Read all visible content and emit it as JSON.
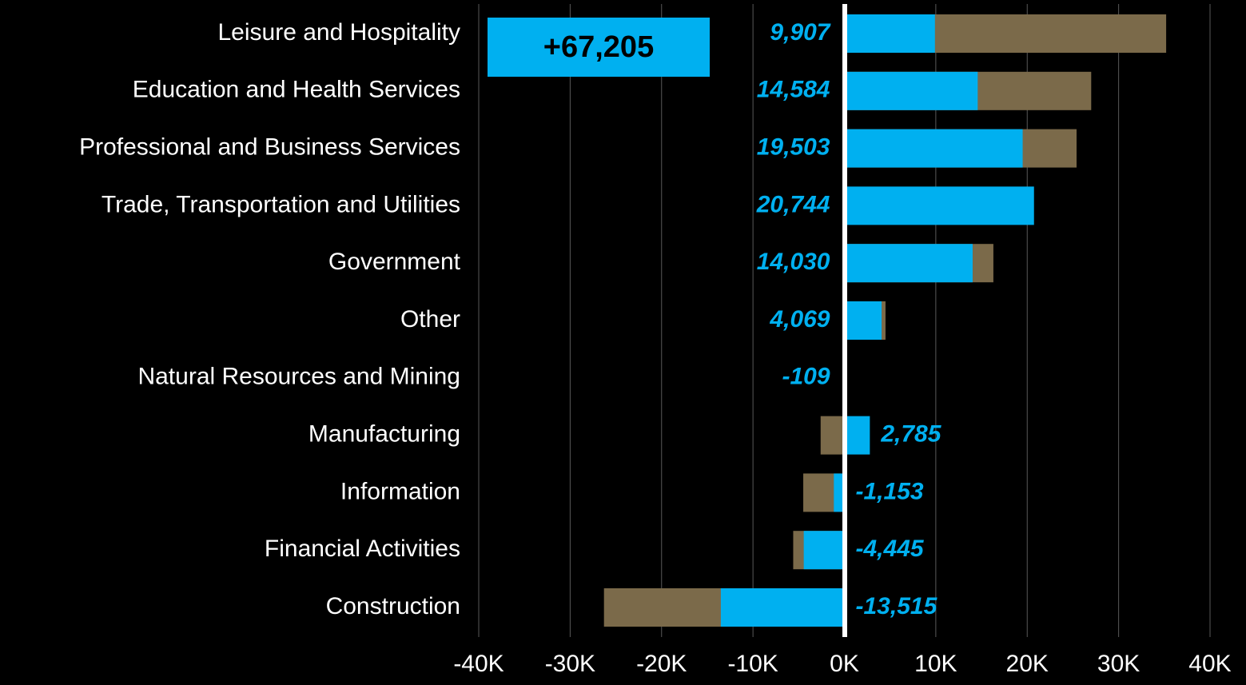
{
  "chart_data": {
    "type": "bar",
    "orientation": "horizontal",
    "categories": [
      "Leisure and Hospitality",
      "Education and Health Services",
      "Professional and Business Services",
      "Trade, Transportation and Utilities",
      "Government",
      "Other",
      "Natural Resources and Mining",
      "Manufacturing",
      "Information",
      "Financial Activities",
      "Construction"
    ],
    "series": [
      {
        "color": "#7b6a4a",
        "values": [
          35200,
          27000,
          25400,
          null,
          16300,
          4500,
          null,
          -2600,
          -4500,
          -5600,
          -26300
        ]
      },
      {
        "color": "#00b0f0",
        "values": [
          9907,
          14584,
          19503,
          20744,
          14030,
          4069,
          -109,
          2785,
          -1153,
          -4445,
          -13515
        ],
        "value_labels": [
          "9,907",
          "14,584",
          "19,503",
          "20,744",
          "14,030",
          "4,069",
          "-109",
          "2,785",
          "-1,153",
          "-4,445",
          "-13,515"
        ]
      }
    ],
    "annotation": "+67,205",
    "xlim": [
      -40000,
      40000
    ],
    "xticks": [
      {
        "value": -40000,
        "label": "-40K"
      },
      {
        "value": -30000,
        "label": "-30K"
      },
      {
        "value": -20000,
        "label": "-20K"
      },
      {
        "value": -10000,
        "label": "-10K"
      },
      {
        "value": 0,
        "label": "0K"
      },
      {
        "value": 10000,
        "label": "10K"
      },
      {
        "value": 20000,
        "label": "20K"
      },
      {
        "value": 30000,
        "label": "30K"
      },
      {
        "value": 40000,
        "label": "40K"
      }
    ],
    "grid": true
  }
}
